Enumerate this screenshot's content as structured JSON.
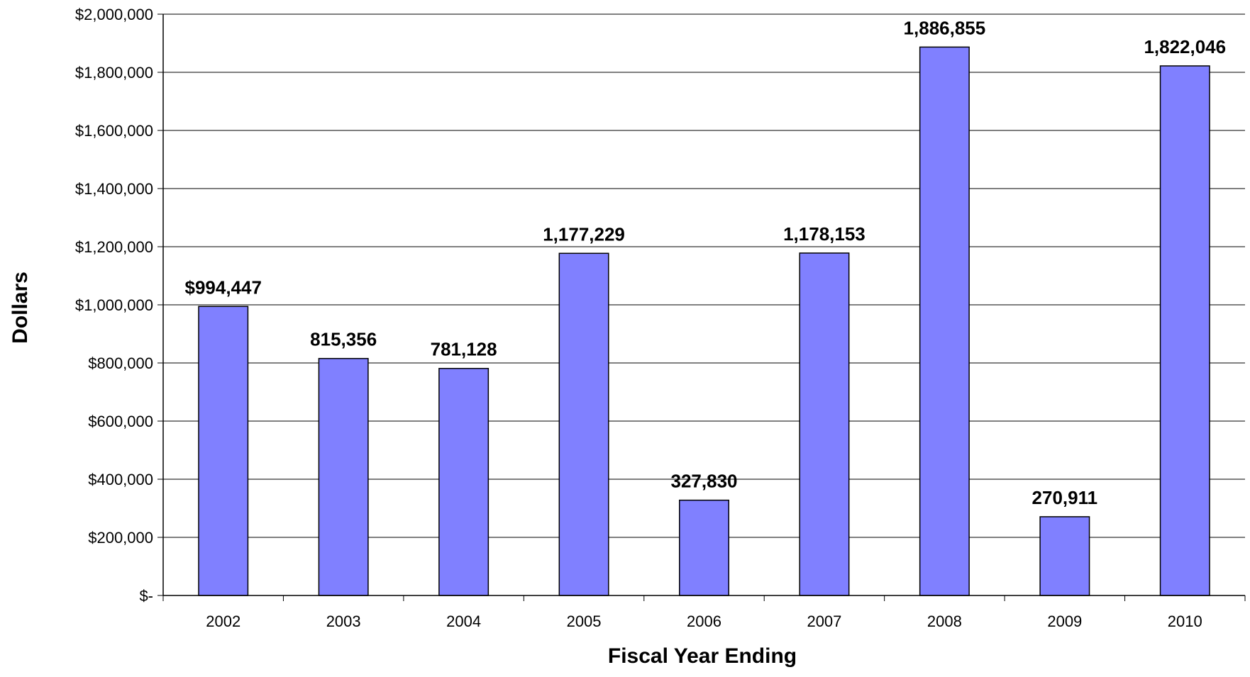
{
  "chart_data": {
    "type": "bar",
    "title": "",
    "xlabel": "Fiscal Year Ending",
    "ylabel": "Dollars",
    "categories": [
      "2002",
      "2003",
      "2004",
      "2005",
      "2006",
      "2007",
      "2008",
      "2009",
      "2010"
    ],
    "values": [
      994447,
      815356,
      781128,
      1177229,
      327830,
      1178153,
      1886855,
      270911,
      1822046
    ],
    "data_labels": [
      "$994,447",
      "815,356",
      "781,128",
      "1,177,229",
      "327,830",
      "1,178,153",
      "1,886,855",
      "270,911",
      "1,822,046"
    ],
    "ylim": [
      0,
      2000000
    ],
    "yticks": [
      0,
      200000,
      400000,
      600000,
      800000,
      1000000,
      1200000,
      1400000,
      1600000,
      1800000,
      2000000
    ],
    "ytick_labels": [
      "$-",
      "$200,000",
      "$400,000",
      "$600,000",
      "$800,000",
      "$1,000,000",
      "$1,200,000",
      "$1,400,000",
      "$1,600,000",
      "$1,800,000",
      "$2,000,000"
    ],
    "grid": true,
    "legend": "none",
    "bar_color": "#8080ff",
    "bar_edge_color": "#000000",
    "grid_color": "#000000"
  }
}
